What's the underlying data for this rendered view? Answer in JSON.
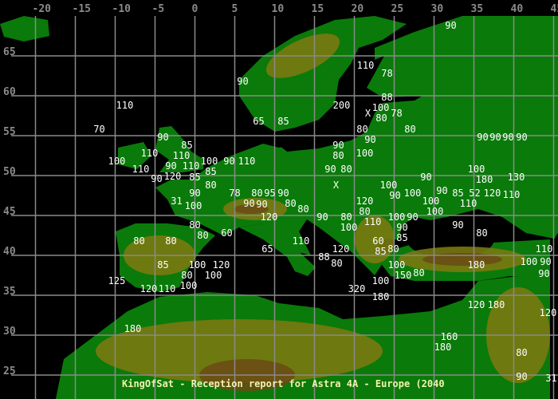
{
  "title": "KingOfSat - Reception report for Astra 4A - Europe (2040",
  "colors": {
    "sea": "#000000",
    "lowland": "#0a7a0a",
    "hills": "#7a7a10",
    "mountains": "#6b4a14",
    "snow": "#5aa0b0",
    "grid": "#8a8a8a",
    "labels": "#ffffff",
    "title": "#f2f2b0"
  },
  "axes": {
    "longitude_ticks": [
      -20,
      -15,
      -10,
      -5,
      0,
      5,
      10,
      15,
      20,
      25,
      30,
      35,
      40,
      45
    ],
    "latitude_ticks": [
      65,
      60,
      55,
      50,
      45,
      40,
      35,
      30,
      25
    ]
  },
  "labels": [
    [
      "90",
      32.1,
      68.8
    ],
    [
      "110",
      21.4,
      63.8
    ],
    [
      "78",
      24.1,
      62.8
    ],
    [
      "90",
      6.0,
      61.8
    ],
    [
      "110",
      -8.8,
      58.8
    ],
    [
      "88",
      24.1,
      59.8
    ],
    [
      "200",
      18.4,
      58.8
    ],
    [
      "100",
      23.3,
      58.8
    ],
    [
      "X",
      21.7,
      57.8
    ],
    [
      "80",
      22.8,
      57.8
    ],
    [
      "78",
      24.1,
      57.8
    ],
    [
      "65",
      8.0,
      56.8
    ],
    [
      "85",
      11.1,
      56.8
    ],
    [
      "70",
      -12.0,
      55.8
    ],
    [
      "80",
      21.0,
      55.8
    ],
    [
      "80",
      27.0,
      55.8
    ],
    [
      "90",
      22.0,
      54.8
    ],
    [
      "90",
      -4.0,
      54.8
    ],
    [
      "85",
      -1.0,
      53.8
    ],
    [
      "90",
      18.0,
      53.8
    ],
    [
      "80",
      18.0,
      52.8
    ],
    [
      "100",
      21.3,
      52.8
    ],
    [
      "110",
      -5.7,
      52.8
    ],
    [
      "110",
      -1.7,
      52.8
    ],
    [
      "100",
      -9.8,
      51.8
    ],
    [
      "90",
      -3.0,
      51.8
    ],
    [
      "110",
      -0.5,
      51.8
    ],
    [
      "100",
      0.6,
      51.8
    ],
    [
      "90",
      4.3,
      51.8
    ],
    [
      "110",
      5.3,
      51.8
    ],
    [
      "110",
      -6.8,
      50.8
    ],
    [
      "120",
      -2.8,
      50.8
    ],
    [
      "85",
      2.0,
      50.8
    ],
    [
      "90",
      -5.0,
      49.8
    ],
    [
      "85",
      0.0,
      49.8
    ],
    [
      "90",
      17.0,
      50.8
    ],
    [
      "80",
      19.0,
      50.8
    ],
    [
      "80",
      2.0,
      48.8
    ],
    [
      "X",
      17.7,
      48.8
    ],
    [
      "100",
      24.3,
      48.8
    ],
    [
      "90",
      0.0,
      47.8
    ],
    [
      "78",
      5.0,
      47.8
    ],
    [
      "80",
      7.8,
      47.8
    ],
    [
      "95",
      8.8,
      47.8
    ],
    [
      "90",
      9.9,
      47.8
    ],
    [
      "90",
      25.1,
      47.8
    ],
    [
      "100",
      26.1,
      47.8
    ],
    [
      "31",
      -2.3,
      46.8
    ],
    [
      "100",
      -0.8,
      46.8
    ],
    [
      "90",
      6.8,
      46.8
    ],
    [
      "90",
      8.0,
      46.8
    ],
    [
      "80",
      12.0,
      46.8
    ],
    [
      "80",
      13.0,
      45.8
    ],
    [
      "120",
      21.3,
      46.8
    ],
    [
      "80",
      21.3,
      45.8
    ],
    [
      "90",
      29.0,
      49.8
    ],
    [
      "100",
      29.3,
      46.8
    ],
    [
      "100",
      30.1,
      45.8
    ],
    [
      "90",
      31.0,
      47.8
    ],
    [
      "85",
      33.0,
      47.8
    ],
    [
      "52",
      35.1,
      47.8
    ],
    [
      "120",
      37.3,
      47.8
    ],
    [
      "110",
      34.3,
      46.8
    ],
    [
      "100",
      35.3,
      50.8
    ],
    [
      "180",
      36.3,
      49.8
    ],
    [
      "90",
      36.1,
      54.8
    ],
    [
      "90",
      37.1,
      54.8
    ],
    [
      "90",
      38.1,
      54.8
    ],
    [
      "90",
      40.1,
      54.8
    ],
    [
      "130",
      40.3,
      49.8
    ],
    [
      "110",
      38.3,
      48.8
    ],
    [
      "120",
      9.3,
      44.8
    ],
    [
      "90",
      16.0,
      44.8
    ],
    [
      "80",
      19.0,
      44.8
    ],
    [
      "110",
      22.3,
      44.8
    ],
    [
      "100",
      25.3,
      44.8
    ],
    [
      "90",
      27.0,
      44.8
    ],
    [
      "100",
      19.3,
      43.8
    ],
    [
      "90",
      26.0,
      43.8
    ],
    [
      "85",
      26.0,
      42.8
    ],
    [
      "90",
      33.0,
      43.8
    ],
    [
      "80",
      36.0,
      42.8
    ],
    [
      "80",
      0.0,
      43.8
    ],
    [
      "80",
      -7.0,
      41.8
    ],
    [
      "80",
      -3.0,
      41.8
    ],
    [
      "80",
      1.0,
      42.8
    ],
    [
      "60",
      4.0,
      42.8
    ],
    [
      "65",
      9.1,
      40.8
    ],
    [
      "110",
      13.3,
      41.8
    ],
    [
      "110",
      43.8,
      40.8
    ],
    [
      "90",
      44.9,
      40.8
    ],
    [
      "120",
      18.3,
      40.8
    ],
    [
      "60",
      23.0,
      41.8
    ],
    [
      "85",
      23.3,
      40.8
    ],
    [
      "80",
      24.3,
      40.8
    ],
    [
      "88",
      16.2,
      39.8
    ],
    [
      "80",
      17.0,
      39.8
    ],
    [
      "85",
      -4.0,
      38.8
    ],
    [
      "100",
      0.3,
      38.8
    ],
    [
      "120",
      3.3,
      38.8
    ],
    [
      "100",
      2.3,
      37.8
    ],
    [
      "80",
      -1.0,
      37.8
    ],
    [
      "100",
      -0.8,
      36.8
    ],
    [
      "125",
      -9.8,
      36.8
    ],
    [
      "120",
      -5.8,
      35.8
    ],
    [
      "110",
      -3.8,
      35.8
    ],
    [
      "100",
      25.3,
      38.8
    ],
    [
      "150",
      26.1,
      37.8
    ],
    [
      "80",
      26.9,
      37.8
    ],
    [
      "180",
      35.3,
      38.8
    ],
    [
      "100",
      43.6,
      39.8
    ],
    [
      "90",
      44.9,
      38.8
    ],
    [
      "100",
      23.3,
      36.8
    ],
    [
      "320",
      20.3,
      35.8
    ],
    [
      "180",
      23.3,
      34.8
    ],
    [
      "120",
      35.3,
      33.8
    ],
    [
      "180",
      36.3,
      33.8
    ],
    [
      "120",
      44.9,
      32.8
    ],
    [
      "180",
      -7.8,
      30.8
    ],
    [
      "160",
      31.9,
      29.8
    ],
    [
      "180",
      31.1,
      28.8
    ],
    [
      "80",
      41.0,
      27.8
    ],
    [
      "90",
      41.0,
      24.8
    ],
    [
      "31",
      44.9,
      24.8
    ]
  ]
}
